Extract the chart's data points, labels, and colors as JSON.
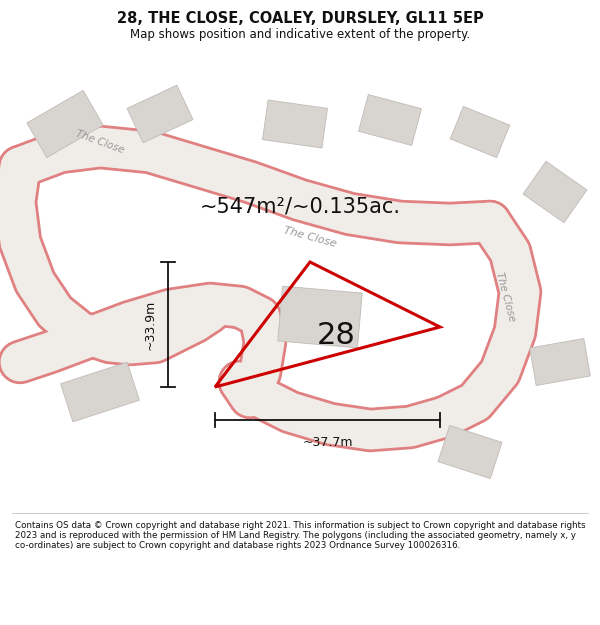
{
  "title": "28, THE CLOSE, COALEY, DURSLEY, GL11 5EP",
  "subtitle": "Map shows position and indicative extent of the property.",
  "area_text": "~547m²/~0.135ac.",
  "number_label": "28",
  "dim_width": "~37.7m",
  "dim_height": "~33.9m",
  "plot_color": "#cc0000",
  "footer_text": "Contains OS data © Crown copyright and database right 2021. This information is subject to Crown copyright and database rights 2023 and is reproduced with the permission of HM Land Registry. The polygons (including the associated geometry, namely x, y co-ordinates) are subject to Crown copyright and database rights 2023 Ordnance Survey 100026316.",
  "road_fill": "#f0ece8",
  "road_edge": "#e08080",
  "building_fill": "#d8d4d0",
  "building_edge": "#c0bbb6",
  "bg_color": "#f2eeea",
  "white": "#ffffff",
  "label_color": "#999999",
  "dim_color": "#111111",
  "text_color": "#111111"
}
